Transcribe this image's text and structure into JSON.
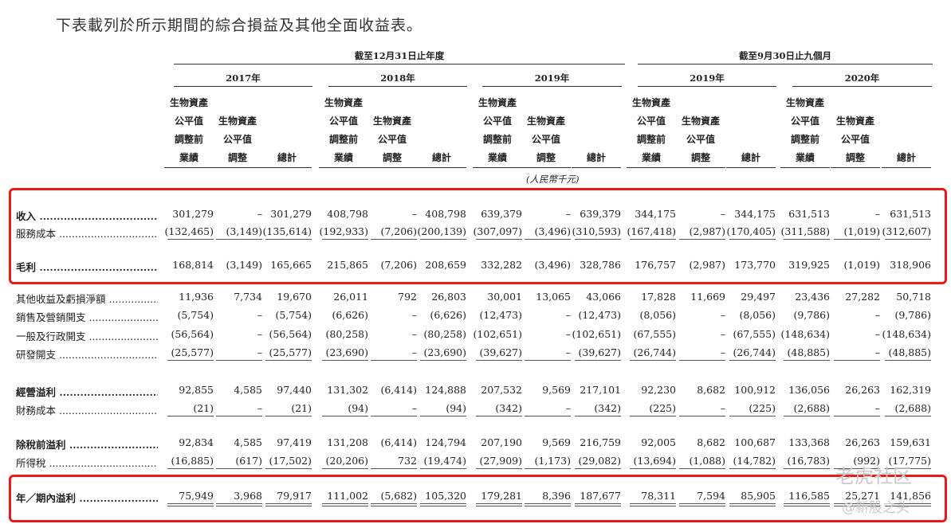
{
  "intro": "下表載列於所示期間的綜合損益及其他全面收益表。",
  "groups": {
    "annual": "截至12月31日止年度",
    "nine_months": "截至9月30日止九個月"
  },
  "years": [
    "2017年",
    "2018年",
    "2019年",
    "2019年",
    "2020年"
  ],
  "sub_headers": {
    "pre": [
      "生物資產",
      "公平值",
      "調整前",
      "業績"
    ],
    "adj": [
      "生物資產",
      "公平值",
      "調整"
    ],
    "total": "總計"
  },
  "unit": "(人民幣千元)",
  "rows": [
    {
      "label": "收入",
      "bold": true,
      "values": [
        "301,279",
        "–",
        "301,279",
        "408,798",
        "–",
        "408,798",
        "639,379",
        "–",
        "639,379",
        "344,175",
        "–",
        "344,175",
        "631,513",
        "–",
        "631,513"
      ]
    },
    {
      "label": "服務成本",
      "bold": false,
      "values": [
        "(132,465)",
        "(3,149)",
        "(135,614)",
        "(192,933)",
        "(7,206)",
        "(200,139)",
        "(307,097)",
        "(3,496)",
        "(310,593)",
        "(167,418)",
        "(2,987)",
        "(170,405)",
        "(311,588)",
        "(1,019)",
        "(312,607)"
      ]
    },
    {
      "label": "毛利",
      "bold": true,
      "values": [
        "168,814",
        "(3,149)",
        "165,665",
        "215,865",
        "(7,206)",
        "208,659",
        "332,282",
        "(3,496)",
        "328,786",
        "176,757",
        "(2,987)",
        "173,770",
        "319,925",
        "(1,019)",
        "318,906"
      ]
    },
    {
      "label": "其他收益及虧損淨額",
      "bold": false,
      "values": [
        "11,936",
        "7,734",
        "19,670",
        "26,011",
        "792",
        "26,803",
        "30,001",
        "13,065",
        "43,066",
        "17,828",
        "11,669",
        "29,497",
        "23,436",
        "27,282",
        "50,718"
      ]
    },
    {
      "label": "銷售及營銷開支",
      "bold": false,
      "values": [
        "(5,754)",
        "–",
        "(5,754)",
        "(6,626)",
        "–",
        "(6,626)",
        "(12,473)",
        "–",
        "(12,473)",
        "(8,056)",
        "–",
        "(8,056)",
        "(9,786)",
        "–",
        "(9,786)"
      ]
    },
    {
      "label": "一般及行政開支",
      "bold": false,
      "values": [
        "(56,564)",
        "–",
        "(56,564)",
        "(80,258)",
        "–",
        "(80,258)",
        "(102,651)",
        "–",
        "(102,651)",
        "(67,555)",
        "–",
        "(67,555)",
        "(148,634)",
        "–",
        "(148,634)"
      ]
    },
    {
      "label": "研發開支",
      "bold": false,
      "values": [
        "(25,577)",
        "–",
        "(25,577)",
        "(23,690)",
        "–",
        "(23,690)",
        "(39,627)",
        "–",
        "(39,627)",
        "(26,744)",
        "–",
        "(26,744)",
        "(48,885)",
        "–",
        "(48,885)"
      ]
    },
    {
      "label": "經營溢利",
      "bold": true,
      "values": [
        "92,855",
        "4,585",
        "97,440",
        "131,302",
        "(6,414)",
        "124,888",
        "207,532",
        "9,569",
        "217,101",
        "92,230",
        "8,682",
        "100,912",
        "136,056",
        "26,263",
        "162,319"
      ]
    },
    {
      "label": "財務成本",
      "bold": false,
      "values": [
        "(21)",
        "–",
        "(21)",
        "(94)",
        "–",
        "(94)",
        "(342)",
        "–",
        "(342)",
        "(225)",
        "–",
        "(225)",
        "(2,688)",
        "–",
        "(2,688)"
      ]
    },
    {
      "label": "除稅前溢利",
      "bold": true,
      "values": [
        "92,834",
        "4,585",
        "97,419",
        "131,208",
        "(6,414)",
        "124,794",
        "207,190",
        "9,569",
        "216,759",
        "92,005",
        "8,682",
        "100,687",
        "133,368",
        "26,263",
        "159,631"
      ]
    },
    {
      "label": "所得稅",
      "bold": false,
      "values": [
        "(16,885)",
        "(617)",
        "(17,502)",
        "(20,206)",
        "732",
        "(19,474)",
        "(27,909)",
        "(1,173)",
        "(29,082)",
        "(13,694)",
        "(1,088)",
        "(14,782)",
        "(16,783)",
        "(992)",
        "(17,775)"
      ]
    },
    {
      "label": "年／期內溢利",
      "bold": true,
      "values": [
        "75,949",
        "3,968",
        "79,917",
        "111,002",
        "(5,682)",
        "105,320",
        "179,281",
        "8,396",
        "187,677",
        "78,311",
        "7,594",
        "85,905",
        "116,585",
        "25,271",
        "141,856"
      ]
    }
  ],
  "watermarks": [
    "老虎社区",
    "@新股之头"
  ],
  "colors": {
    "highlight_box": "#e61b1b",
    "text": "#222222"
  }
}
